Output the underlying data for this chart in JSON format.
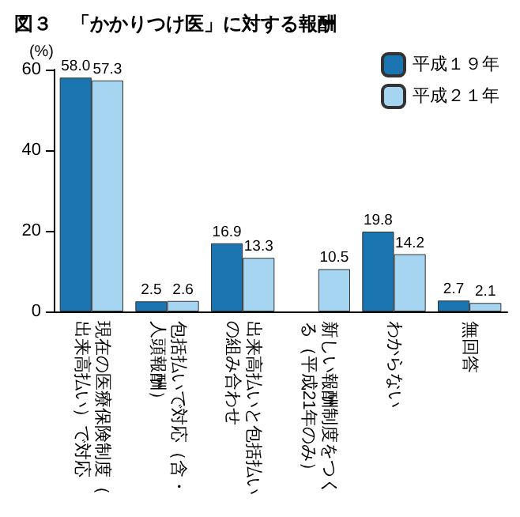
{
  "chart_data": {
    "type": "bar",
    "title": "図３　「かかりつけ医」に対する報酬",
    "ylabel": "(%)",
    "categories": [
      "現在の医療保険制度（出来高払い）で対応",
      "包括払いで対応（含・人頭報酬）",
      "出来高払いと包括払いの組み合わせ",
      "新しい報酬制度をつくる（平成21年のみ）",
      "わからない",
      "無回答"
    ],
    "series": [
      {
        "name": "平成１９年",
        "color": "#1b75b0",
        "values": [
          58.0,
          2.5,
          16.9,
          null,
          19.8,
          2.7
        ],
        "value_labels": [
          "58.0",
          "2.5",
          "16.9",
          null,
          "19.8",
          "2.7"
        ]
      },
      {
        "name": "平成２１年",
        "color": "#a6d5f2",
        "values": [
          57.3,
          2.6,
          13.3,
          10.5,
          14.2,
          2.1
        ],
        "value_labels": [
          "57.3",
          "2.6",
          "13.3",
          "10.5",
          "14.2",
          "2.1"
        ]
      }
    ],
    "ylim": [
      0,
      60
    ],
    "yticks": [
      0,
      20,
      40,
      60
    ],
    "grid": false,
    "legend": "top right"
  }
}
